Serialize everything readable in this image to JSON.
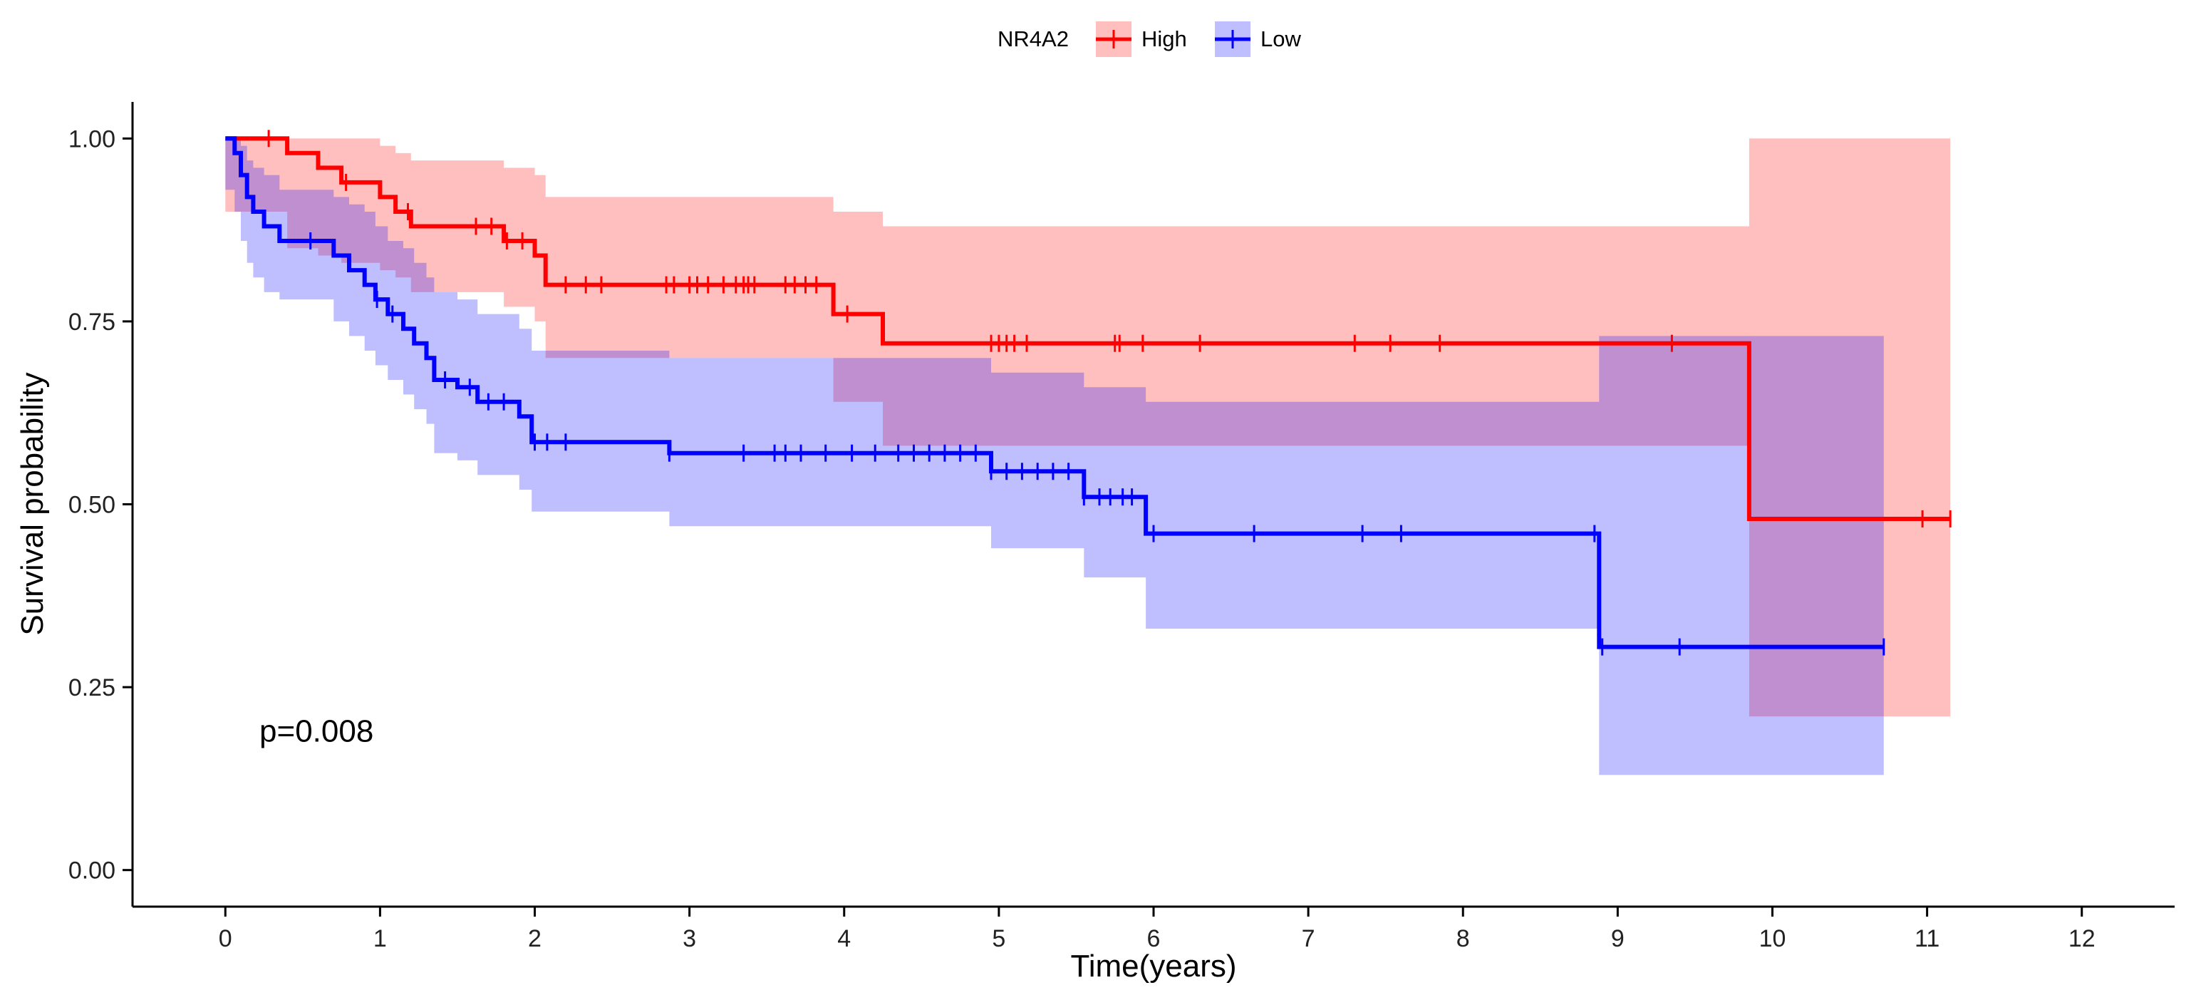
{
  "chart_data": {
    "type": "line",
    "subtype": "kaplan-meier",
    "title": "",
    "xlabel": "Time(years)",
    "ylabel": "Survival probability",
    "xlim": [
      -0.6,
      12.6
    ],
    "ylim": [
      -0.05,
      1.05
    ],
    "xticks": [
      0,
      1,
      2,
      3,
      4,
      5,
      6,
      7,
      8,
      9,
      10,
      11,
      12
    ],
    "xtick_labels": [
      "0",
      "1",
      "2",
      "3",
      "4",
      "5",
      "6",
      "7",
      "8",
      "9",
      "10",
      "11",
      "12"
    ],
    "yticks": [
      0,
      0.25,
      0.5,
      0.75,
      1.0
    ],
    "ytick_labels": [
      "0.00",
      "0.25",
      "0.50",
      "0.75",
      "1.00"
    ],
    "legend": {
      "title": "NR4A2",
      "position": "top-center",
      "entries": [
        "High",
        "Low"
      ]
    },
    "annotation": {
      "text": "p=0.008",
      "x": 0.22,
      "y": 0.19
    },
    "series": [
      {
        "name": "High",
        "color": "#ff0000",
        "band_color": "#ff0000",
        "steps": [
          [
            0,
            1.0
          ],
          [
            0.4,
            0.98
          ],
          [
            0.6,
            0.96
          ],
          [
            0.75,
            0.94
          ],
          [
            1.0,
            0.92
          ],
          [
            1.1,
            0.9
          ],
          [
            1.2,
            0.88
          ],
          [
            1.8,
            0.86
          ],
          [
            2.0,
            0.84
          ],
          [
            2.07,
            0.8
          ],
          [
            3.93,
            0.76
          ],
          [
            4.25,
            0.72
          ],
          [
            9.85,
            0.48
          ],
          [
            11.15,
            0.48
          ]
        ],
        "band": [
          [
            0,
            0.9,
            1.0
          ],
          [
            0.4,
            0.85,
            1.0
          ],
          [
            0.6,
            0.84,
            1.0
          ],
          [
            0.75,
            0.83,
            1.0
          ],
          [
            1.0,
            0.82,
            0.99
          ],
          [
            1.1,
            0.81,
            0.98
          ],
          [
            1.2,
            0.79,
            0.97
          ],
          [
            1.8,
            0.77,
            0.96
          ],
          [
            2.0,
            0.75,
            0.95
          ],
          [
            2.07,
            0.7,
            0.92
          ],
          [
            3.93,
            0.64,
            0.9
          ],
          [
            4.25,
            0.58,
            0.88
          ],
          [
            9.85,
            0.21,
            1.0
          ],
          [
            11.15,
            0.21,
            1.0
          ]
        ],
        "censored": [
          0.28,
          0.78,
          1.18,
          1.62,
          1.72,
          1.82,
          1.92,
          2.2,
          2.33,
          2.43,
          2.85,
          2.9,
          3.0,
          3.05,
          3.12,
          3.22,
          3.3,
          3.35,
          3.38,
          3.42,
          3.62,
          3.68,
          3.75,
          3.82,
          4.02,
          4.95,
          5.0,
          5.05,
          5.1,
          5.18,
          5.75,
          5.78,
          5.93,
          6.3,
          7.3,
          7.53,
          7.85,
          9.35,
          10.97,
          11.15
        ]
      },
      {
        "name": "Low",
        "color": "#0000ff",
        "band_color": "#0000ff",
        "steps": [
          [
            0,
            1.0
          ],
          [
            0.06,
            0.98
          ],
          [
            0.1,
            0.95
          ],
          [
            0.14,
            0.92
          ],
          [
            0.18,
            0.9
          ],
          [
            0.25,
            0.88
          ],
          [
            0.35,
            0.86
          ],
          [
            0.7,
            0.84
          ],
          [
            0.8,
            0.82
          ],
          [
            0.9,
            0.8
          ],
          [
            0.97,
            0.78
          ],
          [
            1.05,
            0.76
          ],
          [
            1.15,
            0.74
          ],
          [
            1.22,
            0.72
          ],
          [
            1.3,
            0.7
          ],
          [
            1.35,
            0.67
          ],
          [
            1.5,
            0.66
          ],
          [
            1.63,
            0.64
          ],
          [
            1.9,
            0.62
          ],
          [
            1.98,
            0.585
          ],
          [
            2.87,
            0.57
          ],
          [
            4.95,
            0.545
          ],
          [
            5.55,
            0.51
          ],
          [
            5.95,
            0.46
          ],
          [
            8.88,
            0.305
          ],
          [
            10.72,
            0.305
          ]
        ],
        "band": [
          [
            0,
            0.93,
            1.0
          ],
          [
            0.06,
            0.9,
            1.0
          ],
          [
            0.1,
            0.86,
            0.99
          ],
          [
            0.14,
            0.83,
            0.97
          ],
          [
            0.18,
            0.81,
            0.96
          ],
          [
            0.25,
            0.79,
            0.95
          ],
          [
            0.35,
            0.78,
            0.93
          ],
          [
            0.7,
            0.75,
            0.92
          ],
          [
            0.8,
            0.73,
            0.91
          ],
          [
            0.9,
            0.71,
            0.9
          ],
          [
            0.97,
            0.69,
            0.88
          ],
          [
            1.05,
            0.67,
            0.86
          ],
          [
            1.15,
            0.65,
            0.85
          ],
          [
            1.22,
            0.63,
            0.83
          ],
          [
            1.3,
            0.61,
            0.81
          ],
          [
            1.35,
            0.57,
            0.79
          ],
          [
            1.5,
            0.56,
            0.78
          ],
          [
            1.63,
            0.54,
            0.76
          ],
          [
            1.9,
            0.52,
            0.74
          ],
          [
            1.98,
            0.49,
            0.71
          ],
          [
            2.87,
            0.47,
            0.7
          ],
          [
            4.95,
            0.44,
            0.68
          ],
          [
            5.55,
            0.4,
            0.66
          ],
          [
            5.95,
            0.33,
            0.64
          ],
          [
            8.88,
            0.13,
            0.73
          ],
          [
            10.72,
            0.13,
            0.73
          ]
        ],
        "censored": [
          0.55,
          0.98,
          1.08,
          1.42,
          1.58,
          1.7,
          1.8,
          2.0,
          2.08,
          2.2,
          2.87,
          3.35,
          3.55,
          3.62,
          3.72,
          3.88,
          4.05,
          4.2,
          4.35,
          4.45,
          4.55,
          4.65,
          4.75,
          4.85,
          4.95,
          5.05,
          5.15,
          5.25,
          5.35,
          5.45,
          5.55,
          5.65,
          5.72,
          5.8,
          5.86,
          6.0,
          6.65,
          7.35,
          7.6,
          8.85,
          8.9,
          9.4,
          10.72
        ]
      }
    ]
  }
}
